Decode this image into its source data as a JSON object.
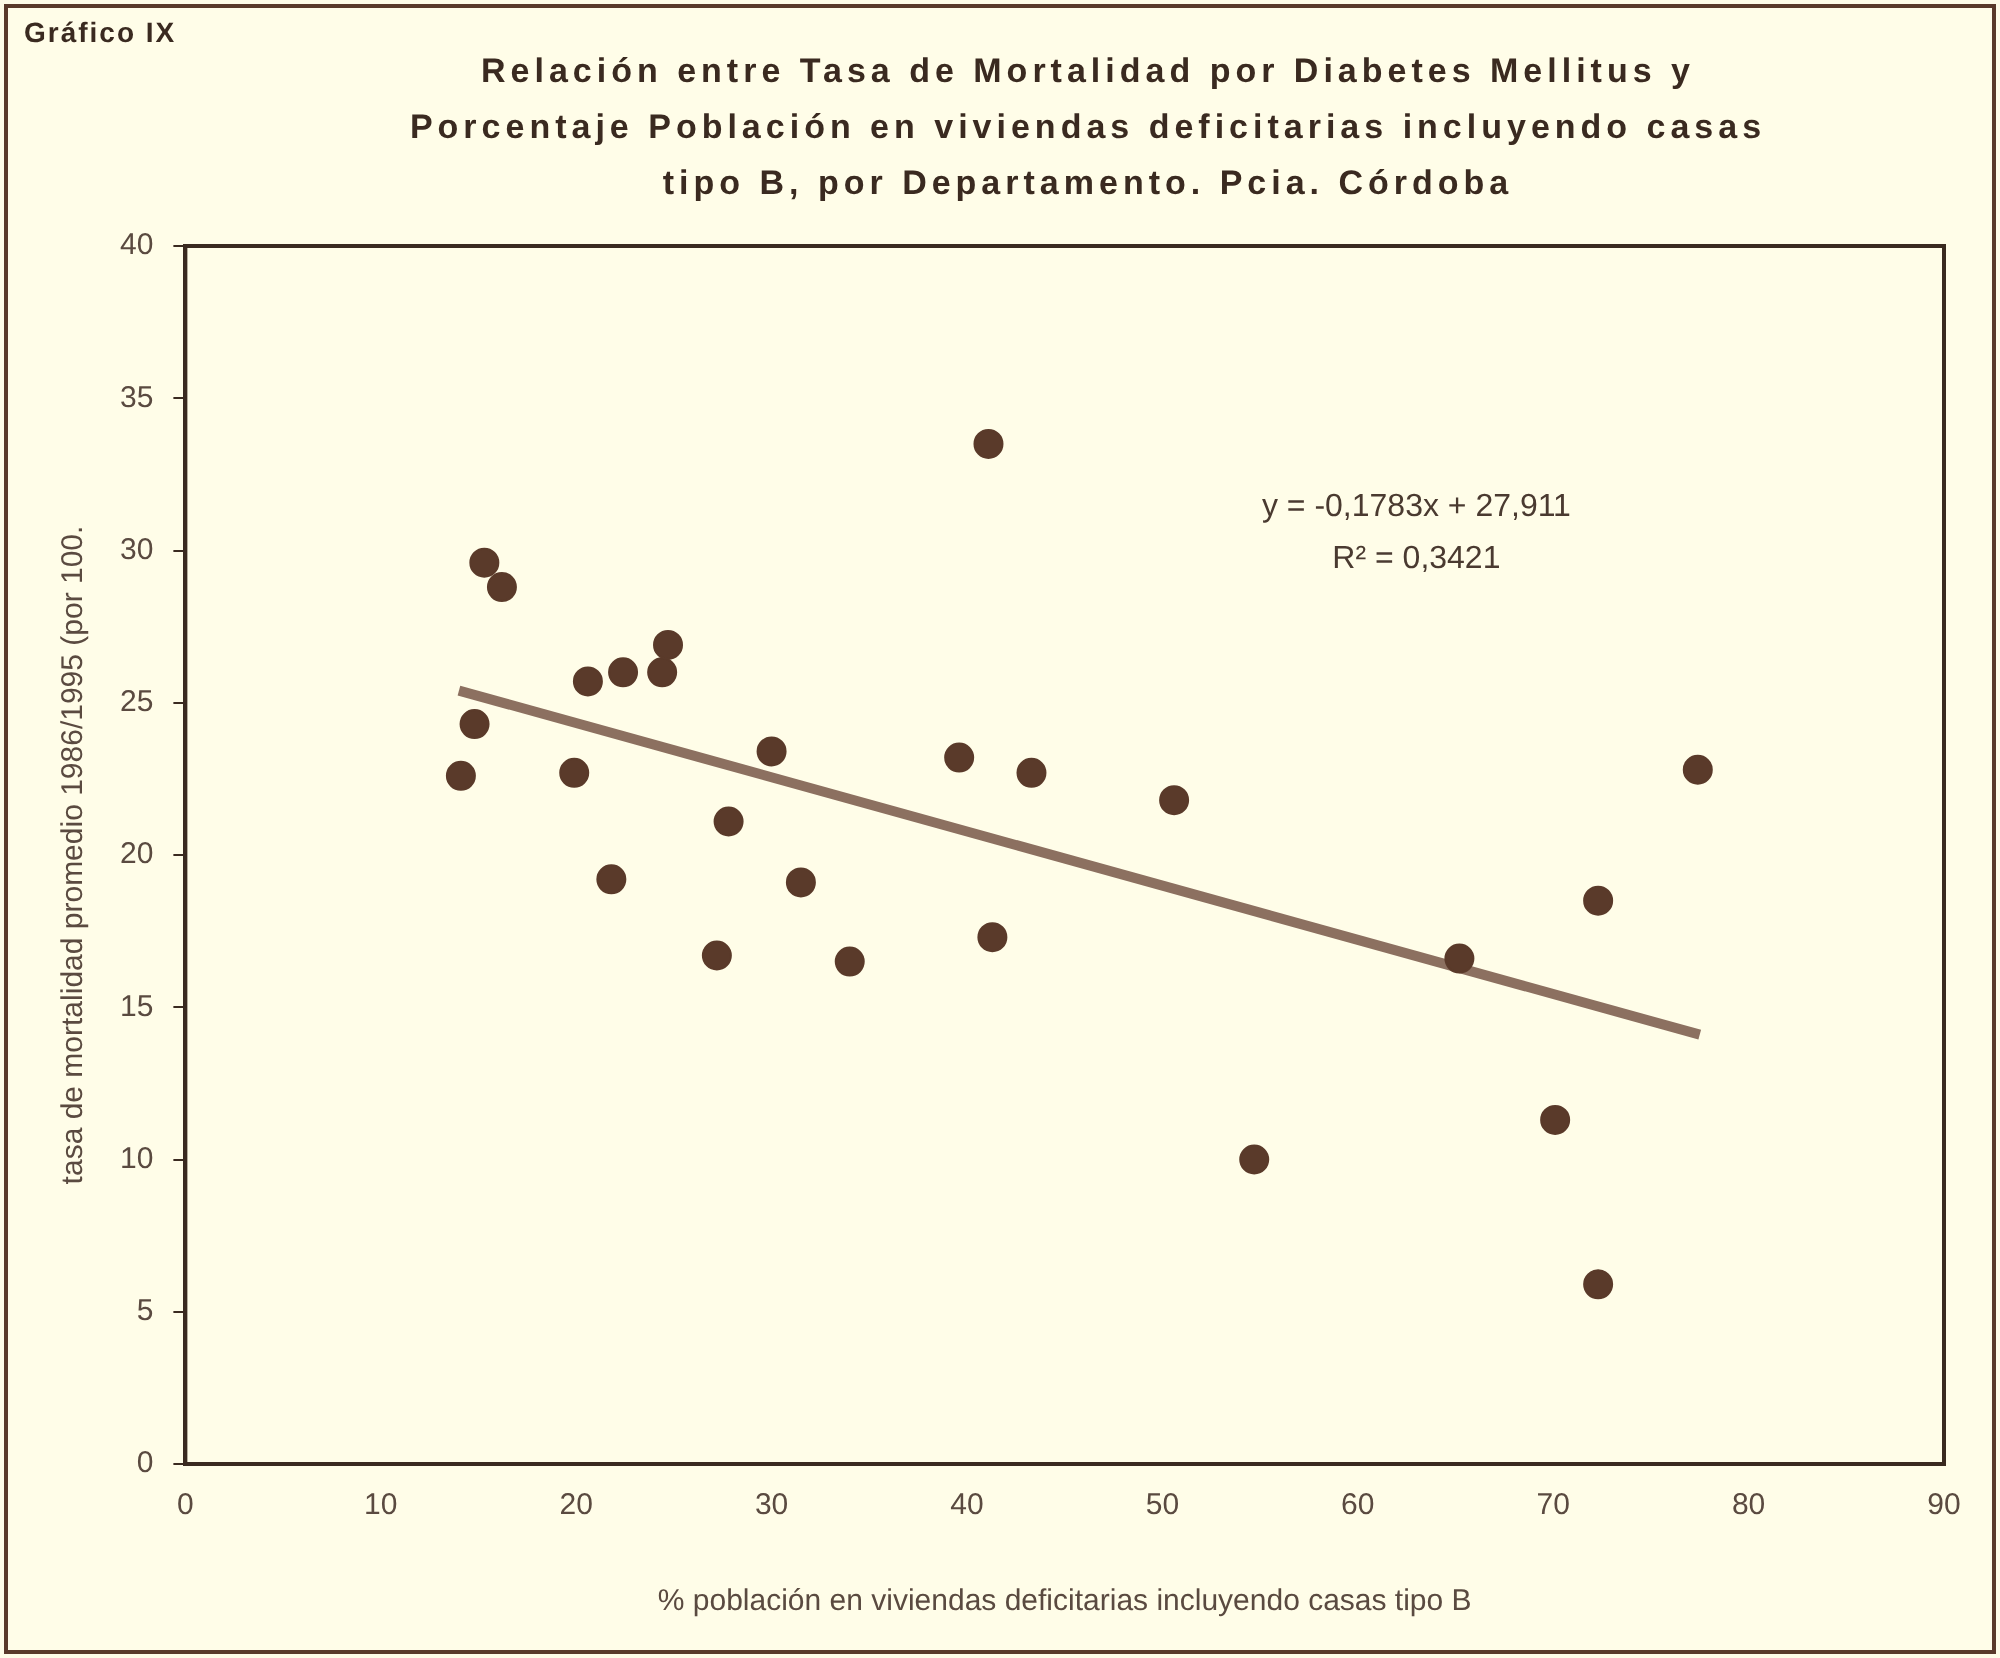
{
  "chart_data": {
    "type": "scatter",
    "title": "Relación entre Tasa de Mortalidad por Diabetes Mellitus y Porcentaje Población en viviendas deficitarias incluyendo casas tipo B, por Departamento. Pcia. Córdoba",
    "xlabel": "% población en viviendas deficitarias incluyendo casas tipo B",
    "ylabel": "tasa de mortalidad promedio 1986/1995 (por 100.",
    "annotations": [
      "Gráfico IX",
      "y = -0,1783x + 27,911",
      "R² = 0,3421"
    ],
    "series": [
      {
        "color": "#5a3a2a",
        "x": [
          14.1,
          14.8,
          15.3,
          16.2,
          19.9,
          20.6,
          21.8,
          22.4,
          24.4,
          24.7,
          27.2,
          27.8,
          30.0,
          31.5,
          34.0,
          39.6,
          41.1,
          41.3,
          43.3,
          50.6,
          54.7,
          65.2,
          70.1,
          72.3,
          72.3,
          77.4
        ],
        "values": [
          22.6,
          24.3,
          29.6,
          28.8,
          22.7,
          25.7,
          19.2,
          26.0,
          26.0,
          26.9,
          16.7,
          21.1,
          23.4,
          19.1,
          16.5,
          23.2,
          33.5,
          17.3,
          22.7,
          21.8,
          10.0,
          16.6,
          11.3,
          18.5,
          5.9,
          22.8
        ]
      },
      {
        "type": "line",
        "marker": "none",
        "color": "#8c7060",
        "x": [
          14,
          77.5
        ],
        "values": [
          25.4,
          14.1
        ]
      }
    ],
    "xlim": [
      0,
      90
    ],
    "xticks": [
      0,
      10,
      20,
      30,
      40,
      50,
      60,
      70,
      80,
      90
    ],
    "ylim": [
      0,
      40
    ],
    "yticks": [
      0,
      5,
      10,
      15,
      20,
      25,
      30,
      35,
      40
    ],
    "grid": false,
    "legend": false,
    "marker": "circle",
    "line_style": "solid"
  }
}
